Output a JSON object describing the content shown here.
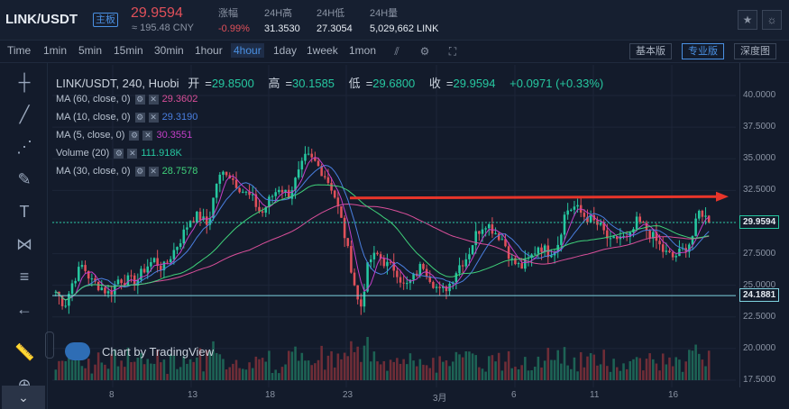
{
  "header": {
    "pair": "LINK/USDT",
    "badge": "主板",
    "price": "29.9594",
    "cny": "≈ 195.48 CNY",
    "stats": [
      {
        "label": "涨幅",
        "value": "-0.99%"
      },
      {
        "label": "24H高",
        "value": "31.3530"
      },
      {
        "label": "24H低",
        "value": "27.3054"
      },
      {
        "label": "24H量",
        "value": "5,029,662 LINK"
      }
    ]
  },
  "toolbar": {
    "timeframes": [
      "Time",
      "1min",
      "5min",
      "15min",
      "30min",
      "1hour",
      "4hour",
      "1day",
      "1week",
      "1mon"
    ],
    "active": "4hour",
    "views": [
      "基本版",
      "专业版",
      "深度图"
    ],
    "active_view": "专业版"
  },
  "legend": {
    "symbol": "LINK/USDT, 240, Huobi",
    "open_label": "开",
    "open": "29.8500",
    "high_label": "高",
    "high": "30.1585",
    "low_label": "低",
    "low": "29.6800",
    "close_label": "收",
    "close": "29.9594",
    "change": "+0.0971 (+0.33%)"
  },
  "indicators": [
    {
      "name": "MA (60, close, 0)",
      "value": "29.3602",
      "color": "#d94f9a"
    },
    {
      "name": "MA (10, close, 0)",
      "value": "29.3190",
      "color": "#4a7fe0"
    },
    {
      "name": "MA (5, close, 0)",
      "value": "30.3551",
      "color": "#c43fc8"
    },
    {
      "name": "Volume (20)",
      "value": "111.918K",
      "color": "#26c7a0"
    },
    {
      "name": "MA (30, close, 0)",
      "value": "28.7578",
      "color": "#3fd17a"
    }
  ],
  "watermark": "Chart by TradingView",
  "chart_data": {
    "type": "candlestick",
    "ylim": [
      17.5,
      41
    ],
    "yticks": [
      "40.0000",
      "37.5000",
      "35.0000",
      "32.5000",
      "30.0000",
      "27.5000",
      "25.0000",
      "22.5000",
      "20.0000",
      "17.5000"
    ],
    "xticks": [
      "8",
      "13",
      "18",
      "23",
      "3月",
      "6",
      "11",
      "16"
    ],
    "last_price": "29.9594",
    "support_label": "24.1881",
    "support": 24.1881,
    "resistance_arrow_level": 31.9,
    "close_path": [
      24.5,
      23.4,
      25.5,
      26.6,
      25.3,
      24.9,
      24.3,
      25.5,
      25.4,
      25.3,
      26.4,
      27.0,
      26.3,
      27.5,
      28.7,
      30.2,
      30.5,
      29.7,
      33.2,
      34.1,
      33.2,
      32.4,
      31.8,
      30.6,
      31.9,
      32.8,
      32.1,
      33.6,
      35.2,
      34.7,
      33.8,
      32.5,
      29.9,
      26.5,
      22.9,
      27.0,
      27.4,
      26.6,
      26.3,
      24.8,
      25.6,
      26.7,
      25.4,
      24.4,
      25.1,
      26.5,
      27.3,
      29.1,
      30.0,
      29.3,
      28.6,
      26.9,
      26.4,
      27.1,
      28.2,
      27.6,
      28.0,
      30.9,
      31.2,
      30.5,
      30.1,
      29.5,
      28.3,
      28.9,
      28.5,
      30.1,
      29.4,
      28.6,
      27.6,
      27.2,
      27.7,
      28.5,
      31.0,
      29.96
    ]
  }
}
